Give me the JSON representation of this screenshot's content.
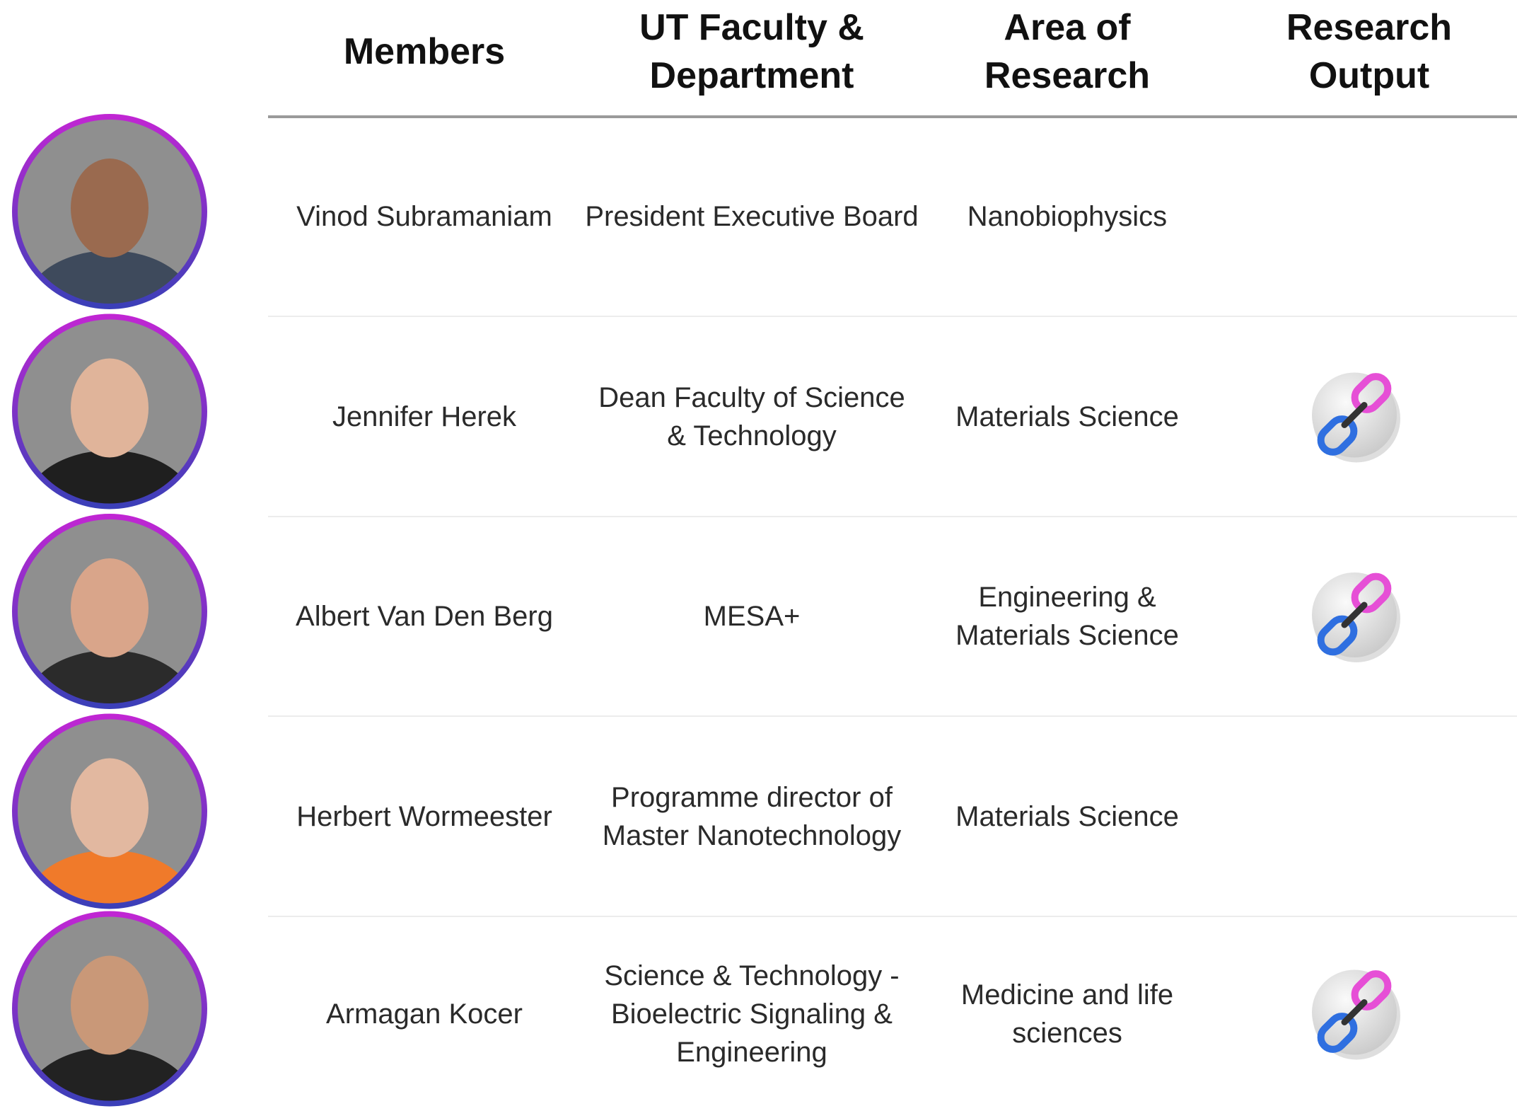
{
  "table": {
    "headers": [
      "Members",
      "UT Faculty &\nDepartment",
      "Area of\nResearch",
      "Research\nOutput"
    ],
    "rows": [
      [
        "Vinod Subramaniam",
        "President Executive Board",
        "Nanobiophysics"
      ],
      [
        "Jennifer Herek",
        "Dean Faculty of Science\n& Technology",
        "Materials Science"
      ],
      [
        "Albert Van Den Berg",
        "MESA+",
        "Engineering &\nMaterials Science"
      ],
      [
        "Herbert Wormeester",
        "Programme director of\nMaster Nanotechnology",
        "Materials Science"
      ],
      [
        "Armagan Kocer",
        "Science & Technology -\nBioelectric Signaling &\nEngineering",
        "Medicine and life\nsciences"
      ]
    ]
  }
}
